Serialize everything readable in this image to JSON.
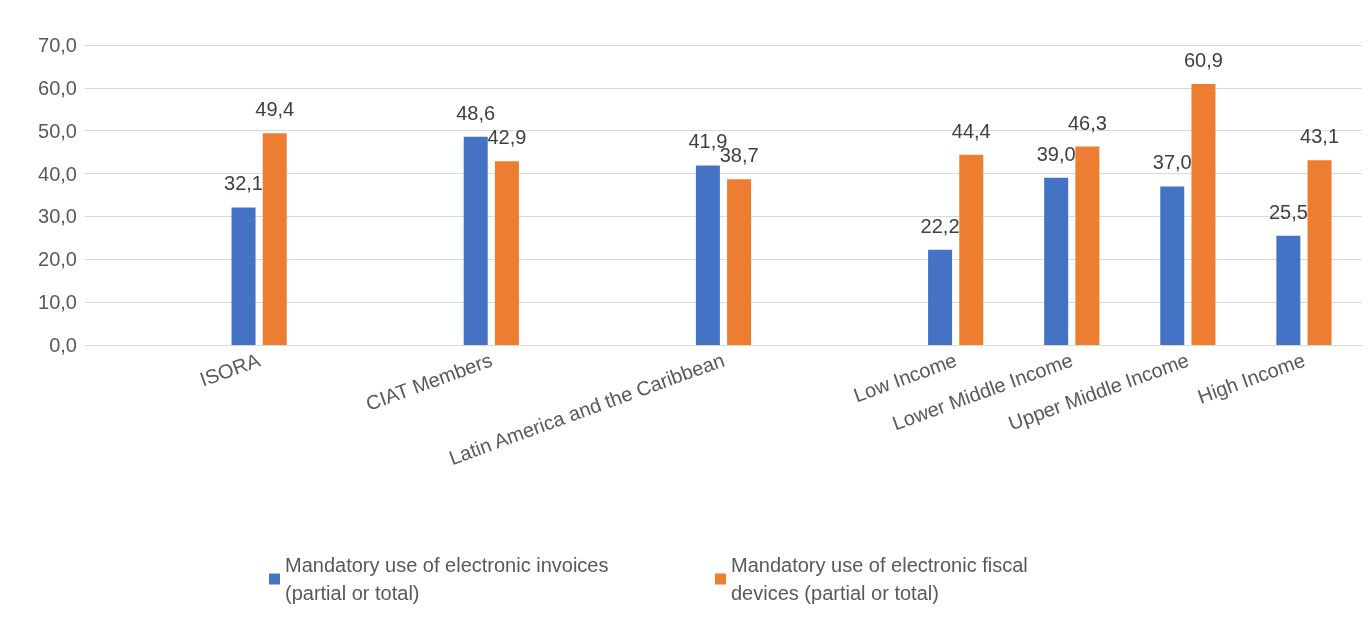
{
  "chart_data": {
    "type": "bar",
    "categories": [
      null,
      "ISORA",
      null,
      "CIAT Members",
      null,
      "Latin America and the Caribbean",
      null,
      "Low Income",
      "Lower Middle Income",
      "Upper Middle Income",
      "High Income"
    ],
    "series": [
      {
        "name": "Mandatory use of electronic invoices (partial or total)",
        "color": "#4472c4",
        "values": [
          null,
          32.1,
          null,
          48.6,
          null,
          41.9,
          null,
          22.2,
          39.0,
          37.0,
          25.5
        ],
        "value_labels": [
          null,
          "32,1",
          null,
          "48,6",
          null,
          "41,9",
          null,
          "22,2",
          "39,0",
          "37,0",
          "25,5"
        ]
      },
      {
        "name": "Mandatory use of electronic fiscal devices (partial or total)",
        "color": "#ed7d31",
        "values": [
          null,
          49.4,
          null,
          42.9,
          null,
          38.7,
          null,
          44.4,
          46.3,
          60.9,
          43.1
        ],
        "value_labels": [
          null,
          "49,4",
          null,
          "42,9",
          null,
          "38,7",
          null,
          "44,4",
          "46,3",
          "60,9",
          "43,1"
        ]
      }
    ],
    "ylim": [
      0,
      70
    ],
    "yticks": [
      {
        "value": 0,
        "label": "0,0"
      },
      {
        "value": 10,
        "label": "10,0"
      },
      {
        "value": 20,
        "label": "20,0"
      },
      {
        "value": 30,
        "label": "30,0"
      },
      {
        "value": 40,
        "label": "40,0"
      },
      {
        "value": 50,
        "label": "50,0"
      },
      {
        "value": 60,
        "label": "60,0"
      },
      {
        "value": 70,
        "label": "70,0"
      }
    ],
    "grid": "y",
    "legend": "bottom"
  }
}
